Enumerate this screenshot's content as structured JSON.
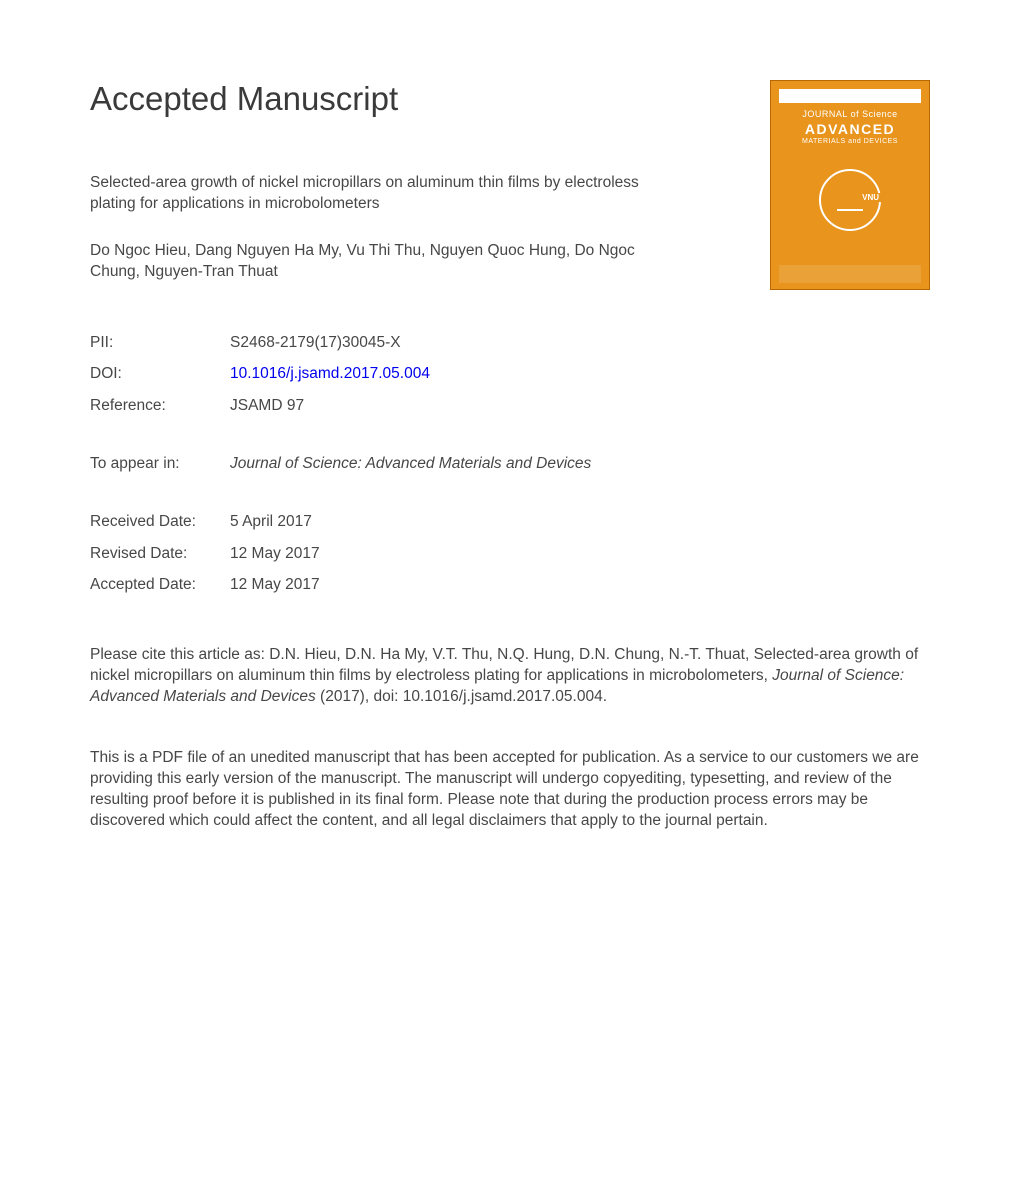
{
  "page_heading": "Accepted Manuscript",
  "article_title": "Selected-area growth of nickel micropillars on aluminum thin films by electroless plating for applications in microbolometers",
  "authors": "Do Ngoc Hieu, Dang Nguyen Ha My, Vu Thi Thu, Nguyen Quoc Hung, Do Ngoc Chung, Nguyen-Tran Thuat",
  "meta": {
    "pii_label": "PII:",
    "pii_value": "S2468-2179(17)30045-X",
    "doi_label": "DOI:",
    "doi_value": "10.1016/j.jsamd.2017.05.004",
    "ref_label": "Reference:",
    "ref_value": "JSAMD 97",
    "appear_label": "To appear in:",
    "appear_value": "Journal of Science: Advanced Materials and Devices",
    "received_label": "Received Date:",
    "received_value": "5 April 2017",
    "revised_label": "Revised Date:",
    "revised_value": "12 May 2017",
    "accepted_label": "Accepted Date:",
    "accepted_value": "12 May 2017"
  },
  "citation_prefix": "Please cite this article as: D.N. Hieu, D.N. Ha My, V.T. Thu, N.Q. Hung, D.N. Chung, N.-T. Thuat, Selected-area growth of nickel micropillars on aluminum thin films by electroless plating for applications in microbolometers, ",
  "citation_journal": "Journal of Science: Advanced Materials and Devices",
  "citation_suffix": " (2017), doi: 10.1016/j.jsamd.2017.05.004.",
  "disclaimer": "This is a PDF file of an unedited manuscript that has been accepted for publication. As a service to our customers we are providing this early version of the manuscript. The manuscript will undergo copyediting, typesetting, and review of the resulting proof before it is published in its final form. Please note that during the production process errors may be discovered which could affect the content, and all legal disclaimers that apply to the journal pertain.",
  "cover": {
    "journal_line": "JOURNAL of Science",
    "advanced": "ADVANCED",
    "subline": "MATERIALS and DEVICES",
    "vnu": "VNU",
    "colors": {
      "bg": "#e8941d",
      "border": "#b86800",
      "text": "#ffffff"
    }
  }
}
